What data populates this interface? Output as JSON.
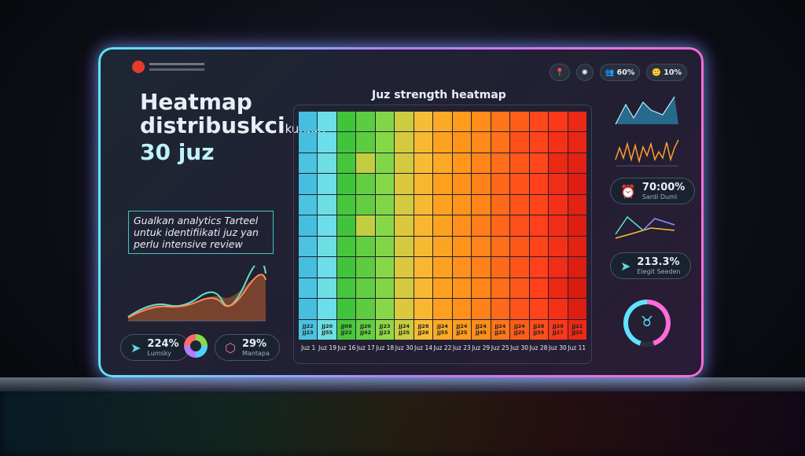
{
  "title": {
    "line1": "Heatmap",
    "line2": "distribuskci",
    "line2_small": "kutaan",
    "line3": "30 juz"
  },
  "description": "Gualkan analytics Tarteel untuk identifiikati juz yan perlu intensive review",
  "left_stats": [
    {
      "value": "224%",
      "label": "Lumsky",
      "icon": "paper-plane-icon"
    },
    {
      "value": "29%",
      "label": "Mantapa",
      "icon": "hexagon-icon"
    }
  ],
  "top_pills": [
    {
      "icon": "pin-icon",
      "value": ""
    },
    {
      "icon": "brain-icon",
      "value": ""
    },
    {
      "icon": "users-icon",
      "value": "60%"
    },
    {
      "icon": "avatar-icon",
      "value": "10%"
    }
  ],
  "right_stats": [
    {
      "value": "70:00%",
      "label": "Sardi Duml",
      "icon": "alarm-icon"
    },
    {
      "value": "213.3%",
      "label": "Elegit Seeden",
      "icon": "paper-plane-icon"
    }
  ],
  "ring_progress": 0.9,
  "chart_data": {
    "type": "heatmap",
    "title": "Juz strength heatmap",
    "x_labels": [
      "Juz 1",
      "Juz 19",
      "Juz 16",
      "Juz 17",
      "Juz 18",
      "Juz 30",
      "Juz 14",
      "Juz 22",
      "Juz 23",
      "Juz 29",
      "Juz 25",
      "Juz 30",
      "Juz 28",
      "Juz 30",
      "Juz 11"
    ],
    "bottom_cell_labels": [
      [
        "JJ22",
        "JJ23"
      ],
      [
        "JJ20",
        "JJ55"
      ],
      [
        "JJ08",
        "JJ22"
      ],
      [
        "JJ20",
        "JJ42"
      ],
      [
        "JJ23",
        "JJ23"
      ],
      [
        "JJ24",
        "JJ25"
      ],
      [
        "JJ28",
        "JJ26"
      ],
      [
        "JJ24",
        "JJ55"
      ],
      [
        "JJ24",
        "JJ25"
      ],
      [
        "JJ24",
        "JJ45"
      ],
      [
        "JJ24",
        "JJ25"
      ],
      [
        "JJ24",
        "JJ25"
      ],
      [
        "JJ28",
        "JJ59"
      ],
      [
        "JJ29",
        "JJ27"
      ],
      [
        "JJ22",
        "JJ25"
      ]
    ],
    "values": [
      [
        5,
        12,
        25,
        30,
        36,
        45,
        52,
        58,
        62,
        66,
        72,
        78,
        84,
        88,
        92
      ],
      [
        5,
        12,
        25,
        30,
        37,
        46,
        53,
        60,
        64,
        67,
        73,
        82,
        85,
        90,
        93
      ],
      [
        6,
        13,
        26,
        44,
        36,
        46,
        52,
        58,
        63,
        68,
        74,
        80,
        84,
        92,
        94
      ],
      [
        5,
        12,
        25,
        31,
        37,
        47,
        54,
        61,
        65,
        69,
        76,
        81,
        86,
        91,
        95
      ],
      [
        6,
        13,
        26,
        31,
        36,
        46,
        53,
        60,
        64,
        68,
        75,
        81,
        85,
        90,
        94
      ],
      [
        5,
        12,
        25,
        44,
        37,
        47,
        54,
        60,
        65,
        70,
        76,
        82,
        86,
        91,
        95
      ],
      [
        6,
        13,
        26,
        31,
        36,
        46,
        53,
        59,
        64,
        68,
        74,
        80,
        85,
        90,
        94
      ],
      [
        5,
        12,
        25,
        30,
        37,
        47,
        54,
        60,
        65,
        69,
        75,
        81,
        86,
        91,
        95
      ],
      [
        6,
        13,
        26,
        31,
        36,
        46,
        53,
        60,
        64,
        68,
        74,
        80,
        86,
        92,
        96
      ],
      [
        5,
        12,
        25,
        30,
        37,
        47,
        54,
        61,
        65,
        69,
        75,
        81,
        85,
        90,
        95
      ],
      [
        6,
        13,
        26,
        31,
        38,
        45,
        52,
        58,
        62,
        66,
        72,
        78,
        82,
        88,
        92
      ]
    ],
    "colormap": [
      "#2aa8d8",
      "#6fe0ea",
      "#3fc43a",
      "#8ad94a",
      "#f6c33a",
      "#ff9a1a",
      "#ff6a1a",
      "#ff3a1a",
      "#c80c0c"
    ]
  }
}
